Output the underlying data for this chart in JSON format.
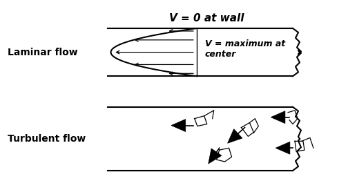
{
  "title_text": "V = 0 at wall",
  "laminar_label": "Laminar flow",
  "turbulent_label": "Turbulent flow",
  "v_max_label": "V = maximum at\ncenter",
  "bg_color": "#ffffff",
  "figsize": [
    5.04,
    2.75
  ],
  "dpi": 100
}
